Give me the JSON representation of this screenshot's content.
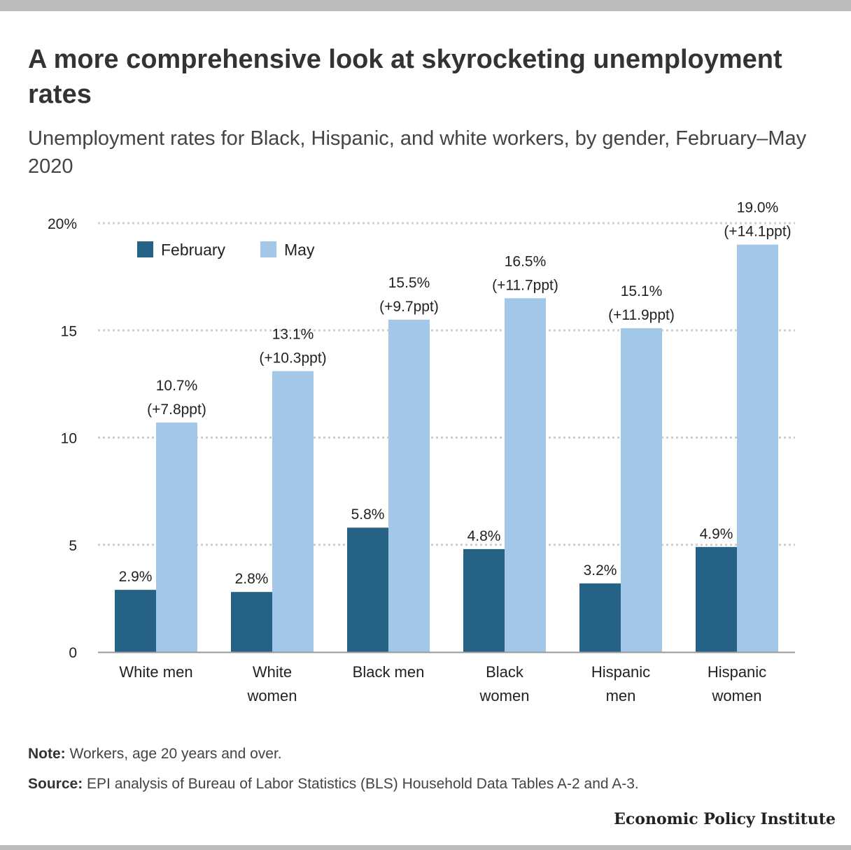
{
  "header": {
    "title": "A more comprehensive look at skyrocketing unemployment rates",
    "subtitle": "Unemployment rates for Black, Hispanic, and white workers, by gender, February–May 2020"
  },
  "chart_data": {
    "type": "bar",
    "categories": [
      [
        "White men"
      ],
      [
        "White",
        "women"
      ],
      [
        "Black men"
      ],
      [
        "Black",
        "women"
      ],
      [
        "Hispanic",
        "men"
      ],
      [
        "Hispanic",
        "women"
      ]
    ],
    "series": [
      {
        "name": "February",
        "values": [
          2.9,
          2.8,
          5.8,
          4.8,
          3.2,
          4.9
        ],
        "color": "#266285",
        "labels": [
          [
            "2.9%"
          ],
          [
            "2.8%"
          ],
          [
            "5.8%"
          ],
          [
            "4.8%"
          ],
          [
            "3.2%"
          ],
          [
            "4.9%"
          ]
        ]
      },
      {
        "name": "May",
        "values": [
          10.7,
          13.1,
          15.5,
          16.5,
          15.1,
          19.0
        ],
        "color": "#a2c7e8",
        "labels": [
          [
            "10.7%",
            "(+7.8ppt)"
          ],
          [
            "13.1%",
            "(+10.3ppt)"
          ],
          [
            "15.5%",
            "(+9.7ppt)"
          ],
          [
            "16.5%",
            "(+11.7ppt)"
          ],
          [
            "15.1%",
            "(+11.9ppt)"
          ],
          [
            "19.0%",
            "(+14.1ppt)"
          ]
        ]
      }
    ],
    "yticks": [
      0,
      5,
      10,
      15,
      20
    ],
    "ytick_labels": [
      "0",
      "5",
      "10",
      "15",
      "20%"
    ],
    "ylim": [
      0,
      20
    ],
    "xlabel": "",
    "ylabel": "",
    "grid": true,
    "legend_position": "top-left"
  },
  "footer": {
    "note_label": "Note:",
    "note_text": " Workers, age 20 years and over.",
    "source_label": "Source:",
    "source_text": " EPI analysis of Bureau of Labor Statistics (BLS) Household Data Tables A-2 and A-3.",
    "brand": "Economic Policy Institute"
  }
}
